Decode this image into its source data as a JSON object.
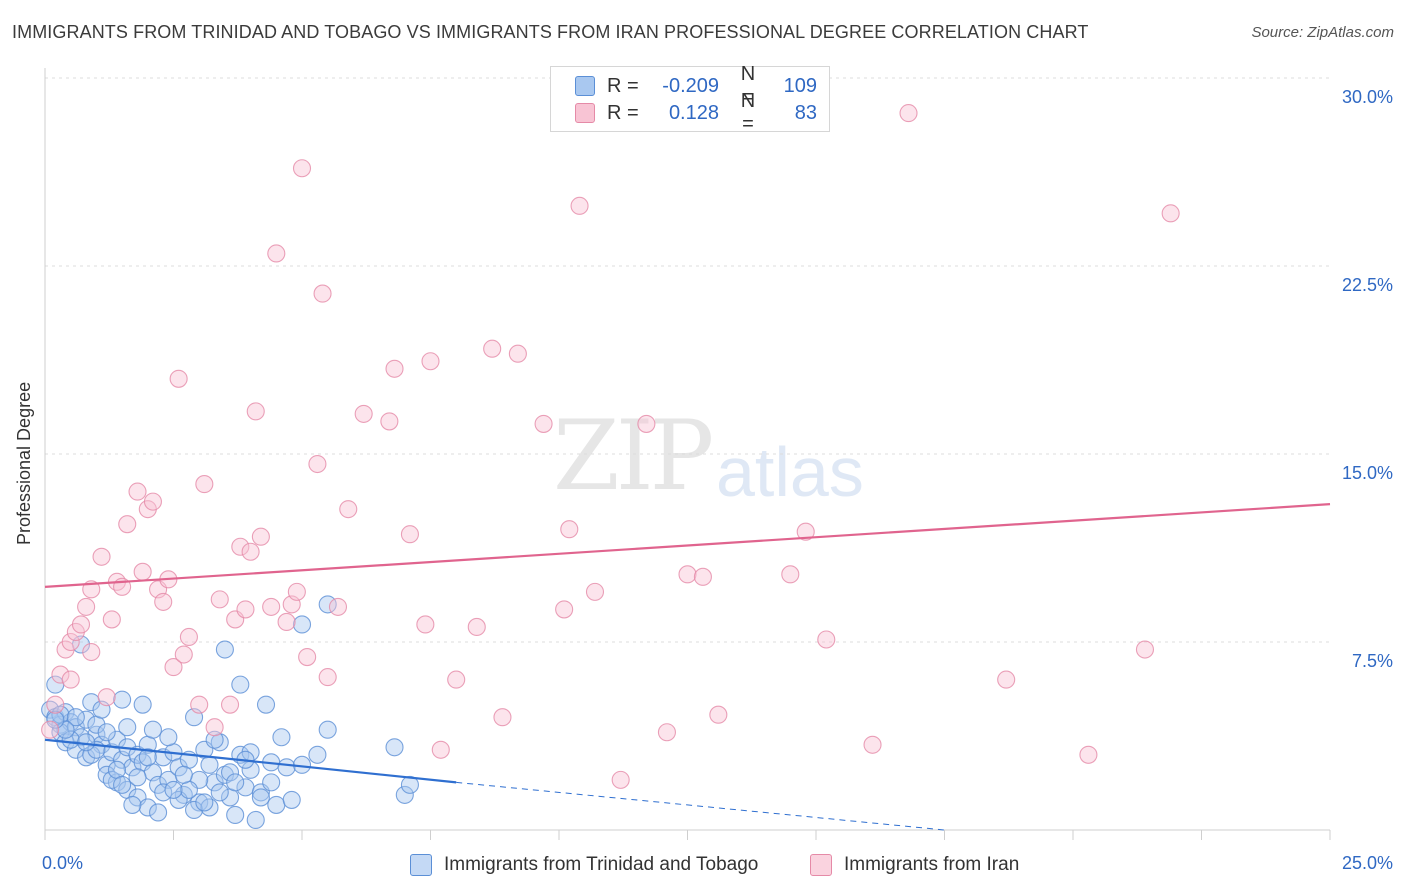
{
  "header": {
    "title": "IMMIGRANTS FROM TRINIDAD AND TOBAGO VS IMMIGRANTS FROM IRAN PROFESSIONAL DEGREE CORRELATION CHART",
    "source": "Source: ZipAtlas.com"
  },
  "watermark": {
    "zip": "ZIP",
    "atlas": "atlas"
  },
  "legend": {
    "r_label": "R =",
    "n_label": "N =",
    "series": [
      {
        "name": "Immigrants from Trinidad and Tobago",
        "r": "-0.209",
        "n": "109",
        "fill": "#a9c8f0",
        "stroke": "#5b8fd6"
      },
      {
        "name": "Immigrants from Iran",
        "r": "0.128",
        "n": "83",
        "fill": "#f8c4d4",
        "stroke": "#e58aa7"
      }
    ]
  },
  "chart_data": {
    "type": "scatter",
    "title": "IMMIGRANTS FROM TRINIDAD AND TOBAGO VS IMMIGRANTS FROM IRAN PROFESSIONAL DEGREE CORRELATION CHART",
    "xlabel": "",
    "ylabel": "Professional Degree",
    "xlim": [
      0,
      25
    ],
    "ylim": [
      0,
      30
    ],
    "x_tick_labels": [
      {
        "value": 0,
        "label": "0.0%"
      },
      {
        "value": 25,
        "label": "25.0%"
      }
    ],
    "y_tick_labels": [
      {
        "value": 7.5,
        "label": "7.5%"
      },
      {
        "value": 15,
        "label": "15.0%"
      },
      {
        "value": 22.5,
        "label": "22.5%"
      },
      {
        "value": 30,
        "label": "30.0%"
      }
    ],
    "grid": true,
    "legend_position": "top-center",
    "series": [
      {
        "name": "Immigrants from Trinidad and Tobago",
        "color": "#5b8fd6",
        "trend": {
          "x0": 0,
          "y0": 3.6,
          "x1": 8,
          "y1": 1.9,
          "dashed_to_x": 17.5,
          "dashed_to_y": 0
        },
        "points": [
          [
            0.1,
            4.8
          ],
          [
            0.2,
            4.5
          ],
          [
            0.3,
            4.2
          ],
          [
            0.4,
            4.7
          ],
          [
            0.5,
            4.3
          ],
          [
            0.3,
            3.9
          ],
          [
            0.6,
            4.1
          ],
          [
            0.2,
            5.8
          ],
          [
            0.7,
            3.7
          ],
          [
            0.4,
            3.5
          ],
          [
            0.8,
            4.4
          ],
          [
            0.9,
            5.1
          ],
          [
            0.6,
            3.2
          ],
          [
            1.0,
            3.8
          ],
          [
            0.8,
            2.9
          ],
          [
            1.1,
            3.4
          ],
          [
            1.2,
            2.6
          ],
          [
            1.0,
            4.2
          ],
          [
            1.3,
            3.1
          ],
          [
            0.7,
            7.4
          ],
          [
            1.4,
            3.6
          ],
          [
            1.5,
            2.8
          ],
          [
            1.6,
            3.3
          ],
          [
            1.2,
            2.2
          ],
          [
            1.7,
            2.5
          ],
          [
            1.8,
            3.0
          ],
          [
            1.4,
            1.9
          ],
          [
            1.9,
            2.7
          ],
          [
            2.0,
            3.4
          ],
          [
            1.6,
            1.6
          ],
          [
            2.1,
            2.3
          ],
          [
            2.2,
            1.8
          ],
          [
            1.8,
            1.3
          ],
          [
            2.3,
            2.9
          ],
          [
            2.4,
            2.0
          ],
          [
            2.0,
            0.9
          ],
          [
            2.5,
            3.1
          ],
          [
            2.6,
            2.5
          ],
          [
            2.2,
            0.7
          ],
          [
            2.7,
            1.4
          ],
          [
            2.8,
            2.8
          ],
          [
            2.9,
            4.5
          ],
          [
            3.0,
            1.1
          ],
          [
            3.1,
            3.2
          ],
          [
            3.2,
            2.6
          ],
          [
            2.9,
            0.8
          ],
          [
            3.3,
            1.9
          ],
          [
            3.4,
            3.5
          ],
          [
            3.5,
            2.2
          ],
          [
            3.6,
            1.3
          ],
          [
            3.7,
            0.6
          ],
          [
            3.8,
            3.0
          ],
          [
            3.9,
            1.7
          ],
          [
            4.0,
            2.4
          ],
          [
            4.1,
            0.4
          ],
          [
            4.2,
            1.5
          ],
          [
            4.3,
            5.0
          ],
          [
            4.4,
            2.7
          ],
          [
            4.5,
            1.0
          ],
          [
            4.6,
            3.7
          ],
          [
            4.7,
            2.5
          ],
          [
            5.0,
            8.2
          ],
          [
            5.3,
            3.0
          ],
          [
            5.5,
            4.0
          ],
          [
            5.5,
            9.0
          ],
          [
            6.8,
            3.3
          ],
          [
            7.0,
            1.4
          ],
          [
            7.1,
            1.8
          ],
          [
            3.5,
            7.2
          ],
          [
            3.2,
            0.9
          ],
          [
            1.1,
            4.8
          ],
          [
            1.5,
            5.2
          ],
          [
            2.1,
            4.0
          ],
          [
            2.6,
            1.2
          ],
          [
            3.8,
            5.8
          ],
          [
            4.0,
            3.1
          ],
          [
            1.9,
            5.0
          ],
          [
            0.9,
            3.0
          ],
          [
            1.3,
            2.0
          ],
          [
            2.4,
            3.7
          ],
          [
            1.7,
            1.0
          ],
          [
            3.0,
            2.0
          ],
          [
            0.5,
            3.6
          ],
          [
            1.6,
            4.1
          ],
          [
            2.8,
            1.6
          ],
          [
            3.6,
            2.3
          ],
          [
            4.4,
            1.9
          ],
          [
            4.8,
            1.2
          ],
          [
            5.0,
            2.6
          ],
          [
            3.3,
            3.6
          ],
          [
            0.3,
            4.6
          ],
          [
            0.6,
            4.5
          ],
          [
            1.0,
            3.2
          ],
          [
            1.4,
            2.4
          ],
          [
            1.8,
            2.1
          ],
          [
            2.0,
            2.9
          ],
          [
            2.3,
            1.5
          ],
          [
            2.7,
            2.2
          ],
          [
            3.1,
            1.1
          ],
          [
            3.4,
            1.5
          ],
          [
            3.9,
            2.8
          ],
          [
            4.2,
            1.3
          ],
          [
            0.4,
            4.0
          ],
          [
            0.8,
            3.5
          ],
          [
            1.2,
            3.9
          ],
          [
            1.5,
            1.8
          ],
          [
            2.5,
            1.6
          ],
          [
            3.7,
            1.9
          ],
          [
            0.2,
            4.4
          ]
        ]
      },
      {
        "name": "Immigrants from Iran",
        "color": "#e58aa7",
        "trend": {
          "x0": 0,
          "y0": 9.7,
          "x1": 25,
          "y1": 13.0
        },
        "points": [
          [
            0.1,
            4.0
          ],
          [
            0.2,
            5.0
          ],
          [
            0.3,
            6.2
          ],
          [
            0.4,
            7.2
          ],
          [
            0.5,
            7.5
          ],
          [
            0.6,
            7.9
          ],
          [
            0.7,
            8.2
          ],
          [
            0.8,
            8.9
          ],
          [
            0.9,
            7.1
          ],
          [
            1.1,
            10.9
          ],
          [
            1.2,
            5.3
          ],
          [
            1.3,
            8.4
          ],
          [
            1.4,
            9.9
          ],
          [
            1.5,
            9.7
          ],
          [
            1.6,
            12.2
          ],
          [
            1.8,
            13.5
          ],
          [
            1.9,
            10.3
          ],
          [
            2.0,
            12.8
          ],
          [
            2.1,
            13.1
          ],
          [
            2.2,
            9.6
          ],
          [
            2.3,
            9.1
          ],
          [
            2.5,
            6.5
          ],
          [
            2.6,
            18.0
          ],
          [
            2.7,
            7.0
          ],
          [
            2.8,
            7.7
          ],
          [
            3.0,
            5.0
          ],
          [
            3.1,
            13.8
          ],
          [
            3.3,
            4.1
          ],
          [
            3.4,
            9.2
          ],
          [
            3.6,
            5.0
          ],
          [
            3.7,
            8.4
          ],
          [
            3.8,
            11.3
          ],
          [
            3.9,
            8.8
          ],
          [
            4.0,
            11.1
          ],
          [
            4.1,
            16.7
          ],
          [
            4.2,
            11.7
          ],
          [
            4.4,
            8.9
          ],
          [
            4.5,
            23.0
          ],
          [
            4.7,
            8.3
          ],
          [
            4.8,
            9.0
          ],
          [
            4.9,
            9.5
          ],
          [
            5.0,
            26.4
          ],
          [
            5.1,
            6.9
          ],
          [
            5.3,
            14.6
          ],
          [
            5.4,
            21.4
          ],
          [
            5.5,
            6.1
          ],
          [
            5.7,
            8.9
          ],
          [
            5.9,
            12.8
          ],
          [
            6.2,
            16.6
          ],
          [
            6.7,
            16.3
          ],
          [
            6.8,
            18.4
          ],
          [
            7.1,
            11.8
          ],
          [
            7.4,
            8.2
          ],
          [
            7.5,
            18.7
          ],
          [
            7.7,
            3.2
          ],
          [
            8.0,
            6.0
          ],
          [
            8.4,
            8.1
          ],
          [
            8.7,
            19.2
          ],
          [
            8.9,
            4.5
          ],
          [
            9.2,
            19.0
          ],
          [
            9.7,
            16.2
          ],
          [
            10.1,
            8.8
          ],
          [
            10.2,
            12.0
          ],
          [
            10.4,
            24.9
          ],
          [
            10.7,
            9.5
          ],
          [
            11.2,
            2.0
          ],
          [
            11.7,
            16.2
          ],
          [
            12.1,
            3.9
          ],
          [
            12.5,
            10.2
          ],
          [
            12.8,
            10.1
          ],
          [
            13.1,
            4.6
          ],
          [
            14.5,
            10.2
          ],
          [
            14.8,
            11.9
          ],
          [
            15.2,
            7.6
          ],
          [
            16.1,
            3.4
          ],
          [
            16.8,
            28.6
          ],
          [
            18.7,
            6.0
          ],
          [
            20.3,
            3.0
          ],
          [
            21.4,
            7.2
          ],
          [
            21.9,
            24.6
          ],
          [
            0.5,
            6.0
          ],
          [
            0.9,
            9.6
          ],
          [
            2.4,
            10.0
          ]
        ]
      }
    ]
  }
}
